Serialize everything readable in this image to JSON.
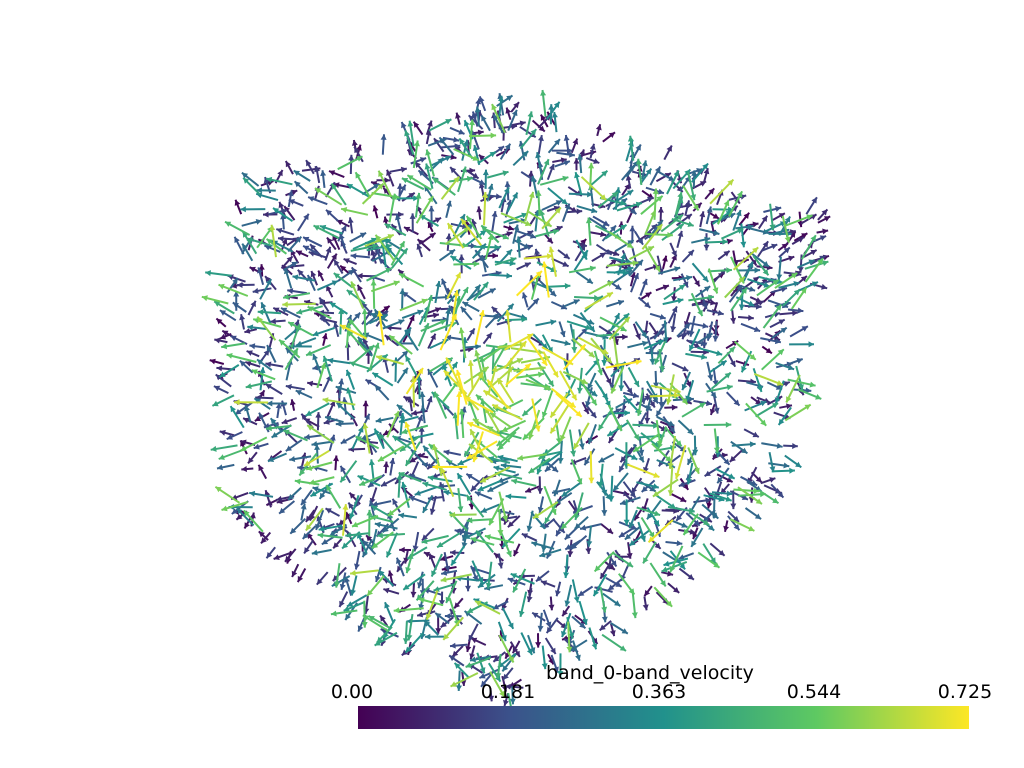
{
  "scalar_bar": {
    "title": "band_0-band_velocity",
    "ticks": [
      "0.00",
      "0.181",
      "0.363",
      "0.544",
      "0.725"
    ],
    "range": [
      0.0,
      0.725
    ],
    "colormap": "viridis",
    "colormap_stops": [
      "#440154",
      "#3b528b",
      "#21918c",
      "#5ec962",
      "#fde725"
    ]
  },
  "scene": {
    "background": "#ffffff",
    "glyph": "arrow",
    "description_visible": "3D vector field of arrows arranged in a cube, swirling around a central vortex; arrow color encodes band_0-band_velocity magnitude"
  }
}
